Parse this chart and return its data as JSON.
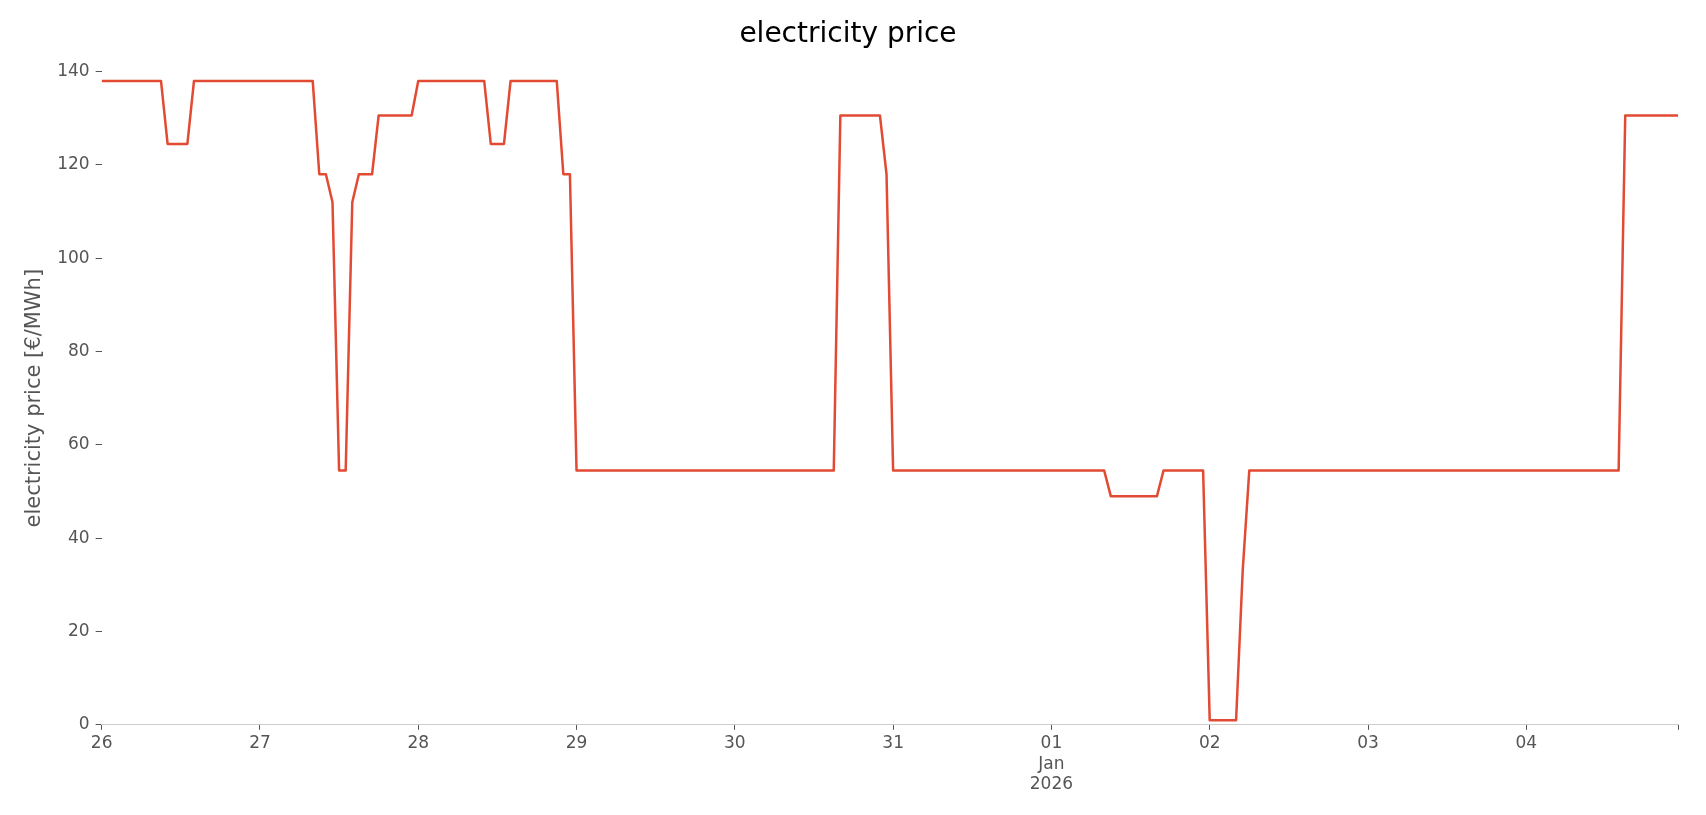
{
  "chart_data": {
    "type": "line",
    "title": "electricity price",
    "ylabel": "electricity price [€/MWh]",
    "x": [
      "2025-12-26T00:00",
      "2025-12-26T09:00",
      "2025-12-26T10:00",
      "2025-12-26T13:00",
      "2025-12-26T14:00",
      "2025-12-27T08:00",
      "2025-12-27T09:00",
      "2025-12-27T10:00",
      "2025-12-27T11:00",
      "2025-12-27T12:00",
      "2025-12-27T13:00",
      "2025-12-27T14:00",
      "2025-12-27T15:00",
      "2025-12-27T17:00",
      "2025-12-27T18:00",
      "2025-12-27T23:00",
      "2025-12-28T00:00",
      "2025-12-28T10:00",
      "2025-12-28T11:00",
      "2025-12-28T13:00",
      "2025-12-28T14:00",
      "2025-12-28T21:00",
      "2025-12-28T22:00",
      "2025-12-28T23:00",
      "2025-12-29T00:00",
      "2025-12-30T15:00",
      "2025-12-30T16:00",
      "2025-12-30T22:00",
      "2025-12-30T23:00",
      "2025-12-31T00:00",
      "2026-01-01T08:00",
      "2026-01-01T09:00",
      "2026-01-01T16:00",
      "2026-01-01T17:00",
      "2026-01-01T23:00",
      "2026-01-02T00:00",
      "2026-01-02T04:00",
      "2026-01-02T05:00",
      "2026-01-02T06:00",
      "2026-01-04T14:00",
      "2026-01-04T15:00",
      "2026-01-04T23:00"
    ],
    "series": [
      {
        "color": "#e24a33",
        "values": [
          138,
          138,
          124.5,
          124.5,
          138,
          138,
          118,
          118,
          112,
          54.5,
          54.5,
          112,
          118,
          118,
          130.6,
          130.6,
          138,
          138,
          124.5,
          124.5,
          138,
          138,
          118,
          118,
          54.5,
          54.5,
          130.6,
          130.6,
          118,
          54.5,
          54.5,
          49,
          49,
          54.5,
          54.5,
          1,
          1,
          33,
          54.5,
          54.5,
          130.6,
          130.6
        ]
      }
    ],
    "xticks": [
      {
        "value": "2025-12-26T00:00",
        "label": "26"
      },
      {
        "value": "2025-12-27T00:00",
        "label": "27"
      },
      {
        "value": "2025-12-28T00:00",
        "label": "28"
      },
      {
        "value": "2025-12-29T00:00",
        "label": "29"
      },
      {
        "value": "2025-12-30T00:00",
        "label": "30"
      },
      {
        "value": "2025-12-31T00:00",
        "label": "31"
      },
      {
        "value": "2026-01-01T00:00",
        "label": "01\nJan\n2026"
      },
      {
        "value": "2026-01-02T00:00",
        "label": "02"
      },
      {
        "value": "2026-01-03T00:00",
        "label": "03"
      },
      {
        "value": "2026-01-04T00:00",
        "label": "04"
      },
      {
        "value": "2026-01-04T23:00",
        "label": null
      }
    ],
    "xlim": [
      "2025-12-26T00:00",
      "2026-01-04T23:00"
    ],
    "ylim": [
      0,
      140
    ],
    "yticks": [
      0,
      20,
      40,
      60,
      80,
      100,
      120,
      140
    ],
    "legend": false,
    "marker": "none",
    "line_style": "solid"
  }
}
